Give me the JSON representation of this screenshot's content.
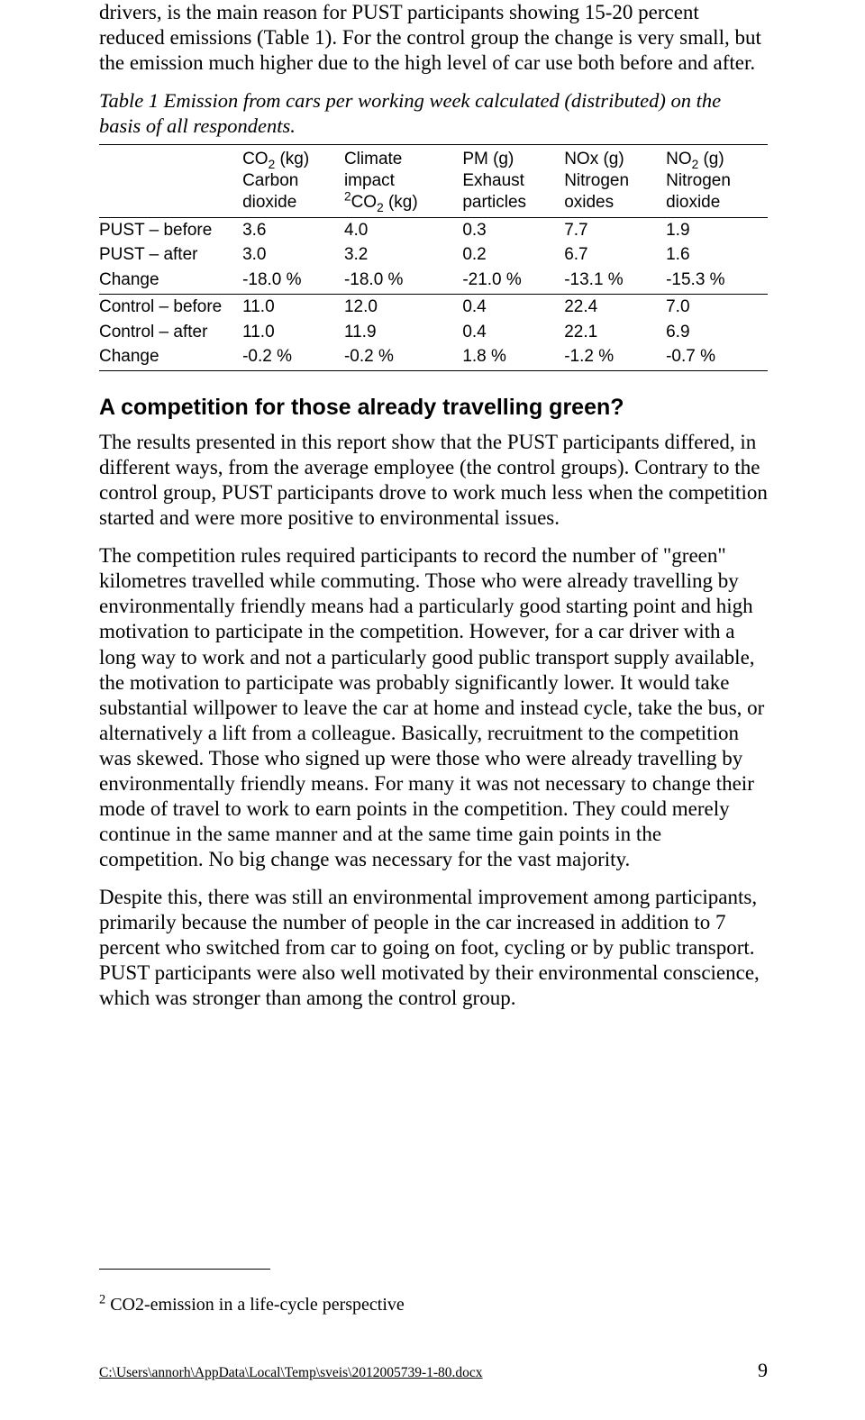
{
  "intro_para": "drivers, is the main reason for PUST participants showing 15-20 percent reduced emissions (Table 1). For the control group the change is very small, but the emission much higher due to the high level of car use both before and after.",
  "table_caption": "Table 1 Emission from cars per working week calculated (distributed) on the basis of all respondents.",
  "table": {
    "headers": {
      "h1": {
        "l1": "CO",
        "sub1": "2",
        "rest1": " (kg)",
        "l2a": "Carbon",
        "l2b": "dioxide"
      },
      "h2": {
        "l1": "Climate",
        "l2": "impact",
        "sup": "2",
        "l3a": "CO",
        "l3sub": "2",
        "l3b": " (kg)"
      },
      "h3": {
        "l1": "PM (g)",
        "l2a": "Exhaust",
        "l2b": "particles"
      },
      "h4": {
        "l1a": "NOx (g)",
        "l2a": "Nitrogen",
        "l2b": "oxides"
      },
      "h5": {
        "l1a": "NO",
        "l1sub": "2",
        "l1b": " (g)",
        "l2a": "Nitrogen",
        "l2b": "dioxide"
      }
    },
    "rows": [
      {
        "label": "PUST – before",
        "v": [
          "3.6",
          "4.0",
          "0.3",
          "7.7",
          "1.9"
        ]
      },
      {
        "label": "PUST – after",
        "v": [
          "3.0",
          "3.2",
          "0.2",
          "6.7",
          "1.6"
        ]
      },
      {
        "label": "Change",
        "v": [
          "-18.0 %",
          "-18.0 %",
          "-21.0 %",
          "-13.1 %",
          "-15.3 %"
        ],
        "sep": true
      },
      {
        "label": "Control – before",
        "v": [
          "11.0",
          "12.0",
          "0.4",
          "22.4",
          "7.0"
        ]
      },
      {
        "label": "Control – after",
        "v": [
          "11.0",
          "11.9",
          "0.4",
          "22.1",
          "6.9"
        ]
      },
      {
        "label": "Change",
        "v": [
          "-0.2 %",
          "-0.2 %",
          "1.8 %",
          "-1.2 %",
          "-0.7 %"
        ],
        "last": true
      }
    ]
  },
  "section_heading": "A competition for those already travelling green?",
  "p1": "The results presented in this report show that the PUST participants differed, in different ways, from the average employee (the control groups). Contrary to the control group, PUST participants drove to work much less when the competition started and were more positive to environmental issues.",
  "p2": "The competition rules required participants to record the number of \"green\" kilometres travelled while commuting. Those who were already travelling by environmentally friendly means had a particularly good starting point and high motivation to participate in the competition. However, for a car driver with a long way to work and not a particularly good public transport supply available, the motivation to participate was probably significantly lower. It would take substantial willpower to leave the car at home and instead cycle, take the bus, or alternatively a lift from a colleague. Basically, recruitment to the competition was skewed. Those who signed up were those who were already travelling by environmentally friendly means. For many it was not necessary to change their mode of travel to work to earn points in the competition. They could merely continue in the same manner and at the same time gain points in the competition. No big change was necessary for the vast majority.",
  "p3": "Despite this, there was still an environmental improvement among participants, primarily because the number of people in the car increased in addition to 7 percent who switched from car to going on foot, cycling or by public transport. PUST participants were also well motivated by their environmental conscience, which was stronger than among the control group.",
  "footnote_marker": "2",
  "footnote_text": " CO2-emission in a life-cycle perspective",
  "footer_path": "C:\\Users\\annorh\\AppData\\Local\\Temp\\sveis\\2012005739-1-80.docx",
  "page_number": "9"
}
